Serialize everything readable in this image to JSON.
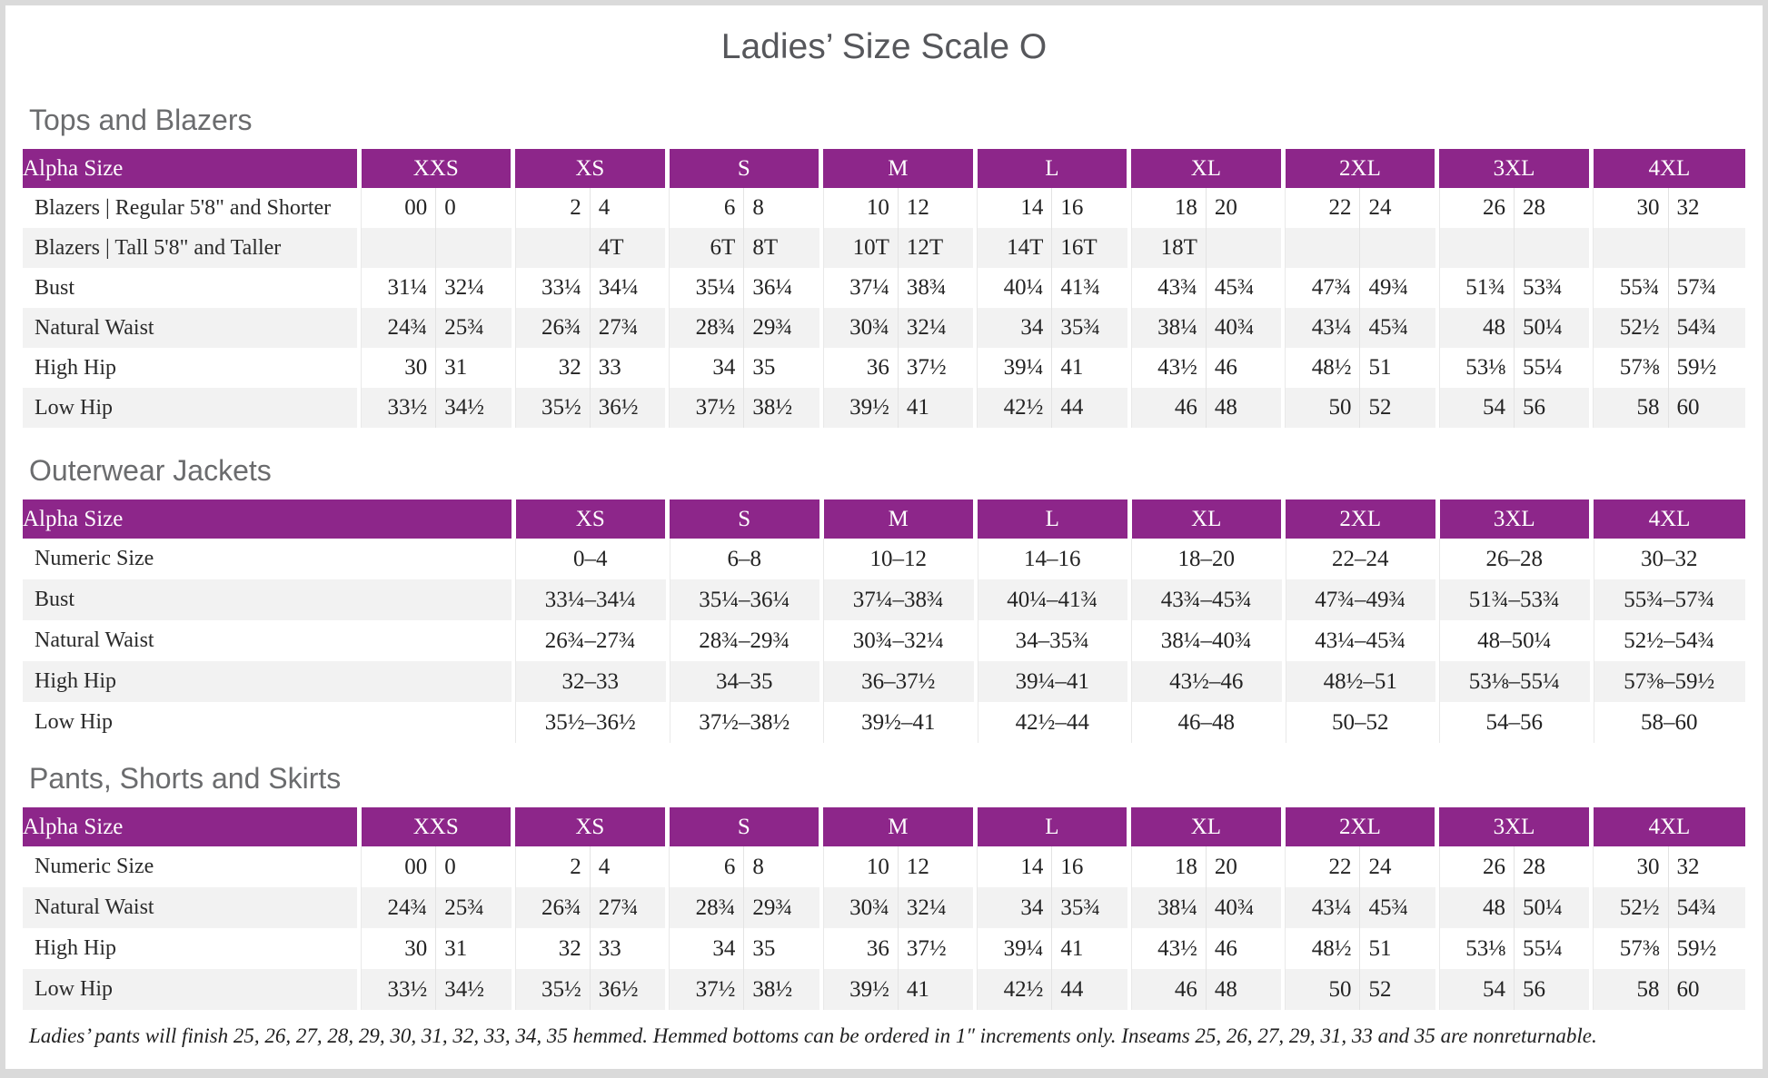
{
  "page": {
    "title": "Ladies’ Size Scale O",
    "footnote": "Ladies’ pants will finish 25, 26, 27, 28, 29, 30, 31, 32, 33, 34, 35 hemmed. Hemmed bottoms can be ordered in 1″ increments only. Inseams 25, 26, 27, 29, 31, 33 and 35 are nonreturnable."
  },
  "colors": {
    "header_purple": "#8d268a",
    "stripe_gray": "#f2f2f2",
    "heading_gray": "#6b6c6e",
    "title_gray": "#56575b",
    "text_dark": "#232323"
  },
  "tables": [
    {
      "heading": "Tops and Blazers",
      "corner_label": "Alpha Size",
      "split": true,
      "sizes": [
        "XXS",
        "XS",
        "S",
        "M",
        "L",
        "XL",
        "2XL",
        "3XL",
        "4XL"
      ],
      "rows": [
        {
          "label": "Blazers | Regular 5'8\" and Shorter",
          "cells": [
            [
              "00",
              "0"
            ],
            [
              "2",
              "4"
            ],
            [
              "6",
              "8"
            ],
            [
              "10",
              "12"
            ],
            [
              "14",
              "16"
            ],
            [
              "18",
              "20"
            ],
            [
              "22",
              "24"
            ],
            [
              "26",
              "28"
            ],
            [
              "30",
              "32"
            ]
          ]
        },
        {
          "label": "Blazers | Tall 5'8\" and Taller",
          "cells": [
            [
              "",
              ""
            ],
            [
              "",
              "4T"
            ],
            [
              "6T",
              "8T"
            ],
            [
              "10T",
              "12T"
            ],
            [
              "14T",
              "16T"
            ],
            [
              "18T",
              ""
            ],
            [
              "",
              ""
            ],
            [
              "",
              ""
            ],
            [
              "",
              ""
            ]
          ]
        },
        {
          "label": "Bust",
          "cells": [
            [
              "31¼",
              "32¼"
            ],
            [
              "33¼",
              "34¼"
            ],
            [
              "35¼",
              "36¼"
            ],
            [
              "37¼",
              "38¾"
            ],
            [
              "40¼",
              "41¾"
            ],
            [
              "43¾",
              "45¾"
            ],
            [
              "47¾",
              "49¾"
            ],
            [
              "51¾",
              "53¾"
            ],
            [
              "55¾",
              "57¾"
            ]
          ]
        },
        {
          "label": "Natural Waist",
          "cells": [
            [
              "24¾",
              "25¾"
            ],
            [
              "26¾",
              "27¾"
            ],
            [
              "28¾",
              "29¾"
            ],
            [
              "30¾",
              "32¼"
            ],
            [
              "34",
              "35¾"
            ],
            [
              "38¼",
              "40¾"
            ],
            [
              "43¼",
              "45¾"
            ],
            [
              "48",
              "50¼"
            ],
            [
              "52½",
              "54¾"
            ]
          ]
        },
        {
          "label": "High Hip",
          "cells": [
            [
              "30",
              "31"
            ],
            [
              "32",
              "33"
            ],
            [
              "34",
              "35"
            ],
            [
              "36",
              "37½"
            ],
            [
              "39¼",
              "41"
            ],
            [
              "43½",
              "46"
            ],
            [
              "48½",
              "51"
            ],
            [
              "53⅛",
              "55¼"
            ],
            [
              "57⅜",
              "59½"
            ]
          ]
        },
        {
          "label": "Low Hip",
          "cells": [
            [
              "33½",
              "34½"
            ],
            [
              "35½",
              "36½"
            ],
            [
              "37½",
              "38½"
            ],
            [
              "39½",
              "41"
            ],
            [
              "42½",
              "44"
            ],
            [
              "46",
              "48"
            ],
            [
              "50",
              "52"
            ],
            [
              "54",
              "56"
            ],
            [
              "58",
              "60"
            ]
          ]
        }
      ]
    },
    {
      "heading": "Outerwear Jackets",
      "corner_label": "Alpha Size",
      "split": false,
      "sizes": [
        "XS",
        "S",
        "M",
        "L",
        "XL",
        "2XL",
        "3XL",
        "4XL"
      ],
      "rows": [
        {
          "label": "Numeric Size",
          "cells": [
            "0–4",
            "6–8",
            "10–12",
            "14–16",
            "18–20",
            "22–24",
            "26–28",
            "30–32"
          ]
        },
        {
          "label": "Bust",
          "cells": [
            "33¼–34¼",
            "35¼–36¼",
            "37¼–38¾",
            "40¼–41¾",
            "43¾–45¾",
            "47¾–49¾",
            "51¾–53¾",
            "55¾–57¾"
          ]
        },
        {
          "label": "Natural Waist",
          "cells": [
            "26¾–27¾",
            "28¾–29¾",
            "30¾–32¼",
            "34–35¾",
            "38¼–40¾",
            "43¼–45¾",
            "48–50¼",
            "52½–54¾"
          ]
        },
        {
          "label": "High Hip",
          "cells": [
            "32–33",
            "34–35",
            "36–37½",
            "39¼–41",
            "43½–46",
            "48½–51",
            "53⅛–55¼",
            "57⅜–59½"
          ]
        },
        {
          "label": "Low Hip",
          "cells": [
            "35½–36½",
            "37½–38½",
            "39½–41",
            "42½–44",
            "46–48",
            "50–52",
            "54–56",
            "58–60"
          ]
        }
      ]
    },
    {
      "heading": "Pants, Shorts and Skirts",
      "corner_label": "Alpha Size",
      "split": true,
      "sizes": [
        "XXS",
        "XS",
        "S",
        "M",
        "L",
        "XL",
        "2XL",
        "3XL",
        "4XL"
      ],
      "rows": [
        {
          "label": "Numeric Size",
          "cells": [
            [
              "00",
              "0"
            ],
            [
              "2",
              "4"
            ],
            [
              "6",
              "8"
            ],
            [
              "10",
              "12"
            ],
            [
              "14",
              "16"
            ],
            [
              "18",
              "20"
            ],
            [
              "22",
              "24"
            ],
            [
              "26",
              "28"
            ],
            [
              "30",
              "32"
            ]
          ]
        },
        {
          "label": "Natural Waist",
          "cells": [
            [
              "24¾",
              "25¾"
            ],
            [
              "26¾",
              "27¾"
            ],
            [
              "28¾",
              "29¾"
            ],
            [
              "30¾",
              "32¼"
            ],
            [
              "34",
              "35¾"
            ],
            [
              "38¼",
              "40¾"
            ],
            [
              "43¼",
              "45¾"
            ],
            [
              "48",
              "50¼"
            ],
            [
              "52½",
              "54¾"
            ]
          ]
        },
        {
          "label": "High Hip",
          "cells": [
            [
              "30",
              "31"
            ],
            [
              "32",
              "33"
            ],
            [
              "34",
              "35"
            ],
            [
              "36",
              "37½"
            ],
            [
              "39¼",
              "41"
            ],
            [
              "43½",
              "46"
            ],
            [
              "48½",
              "51"
            ],
            [
              "53⅛",
              "55¼"
            ],
            [
              "57⅜",
              "59½"
            ]
          ]
        },
        {
          "label": "Low Hip",
          "cells": [
            [
              "33½",
              "34½"
            ],
            [
              "35½",
              "36½"
            ],
            [
              "37½",
              "38½"
            ],
            [
              "39½",
              "41"
            ],
            [
              "42½",
              "44"
            ],
            [
              "46",
              "48"
            ],
            [
              "50",
              "52"
            ],
            [
              "54",
              "56"
            ],
            [
              "58",
              "60"
            ]
          ]
        }
      ]
    }
  ]
}
